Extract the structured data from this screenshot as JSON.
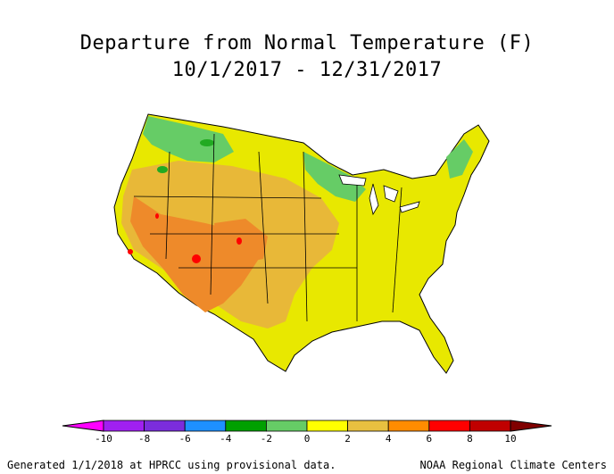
{
  "title": "Departure from Normal Temperature (F)",
  "subtitle": "10/1/2017 - 12/31/2017",
  "legend": {
    "ticks": [
      "-10",
      "-8",
      "-6",
      "-4",
      "-2",
      "0",
      "2",
      "4",
      "6",
      "8",
      "10"
    ],
    "colors": [
      "#ff00ff",
      "#a020f0",
      "#7b2ddc",
      "#1e90ff",
      "#00a000",
      "#66cc66",
      "#ffff00",
      "#e8c040",
      "#ff8c00",
      "#ff0000",
      "#c00000",
      "#800000"
    ]
  },
  "map_colors": {
    "near_normal": "#e8e800",
    "warm_2_4": "#e8b838",
    "warm_4_6": "#ee8a2a",
    "warm_6_8": "#ff0000",
    "cool_0_2": "#66cc66",
    "cool_2_4": "#22aa22"
  },
  "footer": {
    "left": "Generated 1/1/2018 at HPRCC using provisional data.",
    "right": "NOAA Regional Climate Centers"
  }
}
